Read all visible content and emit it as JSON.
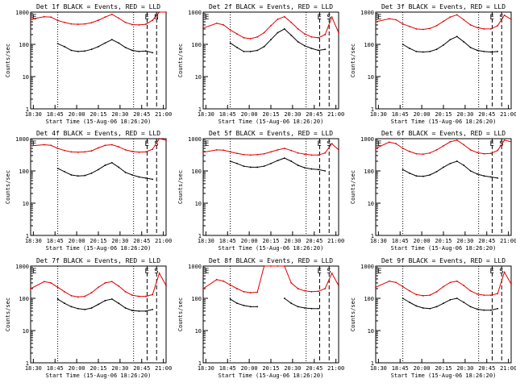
{
  "colors": {
    "events": "#000000",
    "lld": "#e00000",
    "background": "#ffffff",
    "axes": "#000000"
  },
  "chart_data": [
    {
      "type": "line",
      "title": "Det 1f BLACK = Events, RED = LLD",
      "xlabel": "Start Time (15-Aug-06 18:26:20)",
      "ylabel": "Counts/sec",
      "xticks": [
        "18:30",
        "18:45",
        "20:00",
        "20:15",
        "20:30",
        "20:45",
        "21:00"
      ],
      "ytick_labels": [
        "1",
        "10",
        "100",
        "1000"
      ],
      "yscale": "log",
      "ylim": [
        1,
        1000
      ],
      "markers": [
        "E",
        "E",
        "N"
      ],
      "x": [
        0.0,
        0.1,
        0.15,
        0.2,
        0.25,
        0.3,
        0.35,
        0.4,
        0.45,
        0.5,
        0.55,
        0.6,
        0.65,
        0.7,
        0.75,
        0.8,
        0.85,
        0.9,
        0.95,
        1.0
      ],
      "series": [
        {
          "name": "Events",
          "values": [
            null,
            null,
            null,
            105,
            85,
            65,
            60,
            62,
            70,
            85,
            110,
            140,
            110,
            80,
            65,
            60,
            62,
            55,
            null,
            null
          ]
        },
        {
          "name": "LLD",
          "values": [
            600,
            720,
            700,
            550,
            480,
            430,
            420,
            430,
            470,
            560,
            700,
            850,
            650,
            480,
            410,
            400,
            420,
            560,
            1000,
            1000
          ]
        }
      ]
    },
    {
      "type": "line",
      "title": "Det 2f BLACK = Events, RED = LLD",
      "xlabel": "Start Time (15-Aug-06 18:26:20)",
      "ylabel": "Counts/sec",
      "xticks": [
        "18:30",
        "18:45",
        "20:00",
        "20:15",
        "20:30",
        "20:45",
        "21:00"
      ],
      "ytick_labels": [
        "1",
        "10",
        "100",
        "1000"
      ],
      "yscale": "log",
      "ylim": [
        1,
        1000
      ],
      "markers": [
        "E",
        "E",
        "S"
      ],
      "x": [
        0.0,
        0.1,
        0.15,
        0.2,
        0.25,
        0.3,
        0.35,
        0.4,
        0.45,
        0.5,
        0.55,
        0.6,
        0.65,
        0.7,
        0.75,
        0.8,
        0.85,
        0.9,
        0.95,
        1.0
      ],
      "series": [
        {
          "name": "Events",
          "values": [
            null,
            null,
            null,
            110,
            80,
            60,
            60,
            65,
            85,
            140,
            230,
            300,
            190,
            120,
            90,
            75,
            65,
            70,
            null,
            null
          ]
        },
        {
          "name": "LLD",
          "values": [
            320,
            450,
            400,
            280,
            210,
            160,
            150,
            170,
            230,
            380,
            600,
            720,
            480,
            300,
            210,
            170,
            160,
            200,
            700,
            230
          ]
        }
      ]
    },
    {
      "type": "line",
      "title": "Det 3f BLACK = Events, RED = LLD",
      "xlabel": "Start Time (15-Aug-06 18:26:20)",
      "ylabel": "Counts/sec",
      "xticks": [
        "18:30",
        "18:45",
        "20:00",
        "20:15",
        "20:30",
        "20:45",
        "21:00"
      ],
      "ytick_labels": [
        "1",
        "10",
        "100",
        "1000"
      ],
      "yscale": "log",
      "ylim": [
        1,
        1000
      ],
      "markers": [
        "E",
        "E",
        "S"
      ],
      "x": [
        0.0,
        0.1,
        0.15,
        0.2,
        0.25,
        0.3,
        0.35,
        0.4,
        0.45,
        0.5,
        0.55,
        0.6,
        0.65,
        0.7,
        0.75,
        0.8,
        0.85,
        0.9,
        0.95,
        1.0
      ],
      "series": [
        {
          "name": "Events",
          "values": [
            null,
            null,
            null,
            100,
            75,
            60,
            58,
            60,
            70,
            95,
            140,
            175,
            120,
            80,
            65,
            60,
            58,
            60,
            null,
            null
          ]
        },
        {
          "name": "LLD",
          "values": [
            500,
            620,
            580,
            430,
            360,
            300,
            290,
            310,
            380,
            520,
            700,
            820,
            580,
            400,
            330,
            300,
            300,
            380,
            800,
            600
          ]
        }
      ]
    },
    {
      "type": "line",
      "title": "Det 4f BLACK = Events, RED = LLD",
      "xlabel": "Start Time (15-Aug-06 18:26:20)",
      "ylabel": "Counts/sec",
      "xticks": [
        "18:30",
        "18:45",
        "20:00",
        "20:15",
        "20:30",
        "20:45",
        "21:00"
      ],
      "ytick_labels": [
        "1",
        "10",
        "100",
        "1000"
      ],
      "yscale": "log",
      "ylim": [
        1,
        1000
      ],
      "markers": [
        "E",
        "E",
        "S"
      ],
      "x": [
        0.0,
        0.1,
        0.15,
        0.2,
        0.25,
        0.3,
        0.35,
        0.4,
        0.45,
        0.5,
        0.55,
        0.6,
        0.65,
        0.7,
        0.75,
        0.8,
        0.85,
        0.9,
        0.95,
        1.0
      ],
      "series": [
        {
          "name": "Events",
          "values": [
            null,
            null,
            null,
            120,
            95,
            75,
            70,
            72,
            85,
            110,
            150,
            180,
            130,
            90,
            75,
            65,
            60,
            55,
            null,
            null
          ]
        },
        {
          "name": "LLD",
          "values": [
            600,
            650,
            620,
            500,
            430,
            390,
            380,
            390,
            420,
            520,
            620,
            650,
            560,
            450,
            400,
            380,
            390,
            470,
            1000,
            900
          ]
        }
      ]
    },
    {
      "type": "line",
      "title": "Det 5f BLACK = Events, RED = LLD",
      "xlabel": "Start Time (15-Aug-06 18:26:20)",
      "ylabel": "Counts/sec",
      "xticks": [
        "18:30",
        "18:45",
        "20:00",
        "20:15",
        "20:30",
        "20:45",
        "21:00"
      ],
      "ytick_labels": [
        "1",
        "10",
        "100",
        "1000"
      ],
      "yscale": "log",
      "ylim": [
        1,
        1000
      ],
      "markers": [
        "E",
        "E",
        "S"
      ],
      "x": [
        0.0,
        0.1,
        0.15,
        0.2,
        0.25,
        0.3,
        0.35,
        0.4,
        0.45,
        0.5,
        0.55,
        0.6,
        0.65,
        0.7,
        0.75,
        0.8,
        0.85,
        0.9,
        0.95,
        1.0
      ],
      "series": [
        {
          "name": "Events",
          "values": [
            null,
            null,
            null,
            200,
            170,
            140,
            130,
            130,
            140,
            170,
            210,
            250,
            200,
            150,
            125,
            115,
            110,
            100,
            null,
            null
          ]
        },
        {
          "name": "LLD",
          "values": [
            380,
            450,
            440,
            390,
            350,
            320,
            310,
            320,
            340,
            390,
            450,
            500,
            430,
            360,
            330,
            310,
            310,
            360,
            700,
            450
          ]
        }
      ]
    },
    {
      "type": "line",
      "title": "Det 6f BLACK = Events, RED = LLD",
      "xlabel": "Start Time (15-Aug-06 18:26:20)",
      "ylabel": "Counts/sec",
      "xticks": [
        "18:30",
        "18:45",
        "20:00",
        "20:15",
        "20:30",
        "20:45",
        "21:00"
      ],
      "ytick_labels": [
        "1",
        "10",
        "100",
        "1000"
      ],
      "yscale": "log",
      "ylim": [
        1,
        1000
      ],
      "markers": [
        "E",
        "E",
        "S"
      ],
      "x": [
        0.0,
        0.1,
        0.15,
        0.2,
        0.25,
        0.3,
        0.35,
        0.4,
        0.45,
        0.5,
        0.55,
        0.6,
        0.65,
        0.7,
        0.75,
        0.8,
        0.85,
        0.9,
        0.95,
        1.0
      ],
      "series": [
        {
          "name": "Events",
          "values": [
            null,
            null,
            null,
            110,
            85,
            70,
            68,
            75,
            95,
            130,
            170,
            200,
            150,
            100,
            80,
            70,
            65,
            60,
            null,
            null
          ]
        },
        {
          "name": "LLD",
          "values": [
            500,
            780,
            700,
            500,
            400,
            340,
            330,
            360,
            450,
            600,
            800,
            900,
            650,
            450,
            370,
            340,
            350,
            430,
            900,
            800
          ]
        }
      ]
    },
    {
      "type": "line",
      "title": "Det 7f BLACK = Events, RED = LLD",
      "xlabel": "Start Time (15-Aug-06 18:26:20)",
      "ylabel": "Counts/sec",
      "xticks": [
        "18:30",
        "18:45",
        "20:00",
        "20:15",
        "20:30",
        "20:45",
        "21:00"
      ],
      "ytick_labels": [
        "1",
        "10",
        "100",
        "1000"
      ],
      "yscale": "log",
      "ylim": [
        1,
        1000
      ],
      "markers": [
        "E",
        "E",
        "S"
      ],
      "x": [
        0.0,
        0.1,
        0.15,
        0.2,
        0.25,
        0.3,
        0.35,
        0.4,
        0.45,
        0.5,
        0.55,
        0.6,
        0.65,
        0.7,
        0.75,
        0.8,
        0.85,
        0.9,
        0.95,
        1.0
      ],
      "series": [
        {
          "name": "Events",
          "values": [
            null,
            null,
            null,
            95,
            70,
            55,
            48,
            45,
            50,
            65,
            85,
            95,
            70,
            50,
            42,
            40,
            40,
            45,
            null,
            null
          ]
        },
        {
          "name": "LLD",
          "values": [
            200,
            330,
            300,
            220,
            160,
            120,
            110,
            115,
            150,
            220,
            300,
            330,
            240,
            160,
            125,
            115,
            115,
            130,
            600,
            250
          ]
        }
      ]
    },
    {
      "type": "line",
      "title": "Det 8f BLACK = Events, RED = LLD",
      "xlabel": "Start Time (15-Aug-06 18:26:20)",
      "ylabel": "Counts/sec",
      "xticks": [
        "18:30",
        "18:45",
        "20:00",
        "20:15",
        "20:30",
        "20:45",
        "21:00"
      ],
      "ytick_labels": [
        "1",
        "10",
        "100",
        "1000"
      ],
      "yscale": "log",
      "ylim": [
        1,
        1000
      ],
      "markers": [
        "E",
        "E",
        "S"
      ],
      "x": [
        0.0,
        0.1,
        0.15,
        0.2,
        0.25,
        0.3,
        0.35,
        0.4,
        0.45,
        0.5,
        0.55,
        0.6,
        0.65,
        0.7,
        0.75,
        0.8,
        0.85,
        0.9,
        0.95,
        1.0
      ],
      "series": [
        {
          "name": "Events",
          "values": [
            null,
            null,
            null,
            95,
            70,
            60,
            55,
            55,
            null,
            null,
            null,
            100,
            70,
            55,
            50,
            48,
            48,
            null,
            null,
            null
          ]
        },
        {
          "name": "LLD",
          "values": [
            200,
            380,
            340,
            260,
            200,
            160,
            150,
            155,
            1000,
            1000,
            1000,
            1000,
            300,
            200,
            170,
            160,
            165,
            200,
            600,
            250
          ]
        }
      ]
    },
    {
      "type": "line",
      "title": "Det 9f BLACK = Events, RED = LLD",
      "xlabel": "Start Time (15-Aug-06 18:26:20)",
      "ylabel": "Counts/sec",
      "xticks": [
        "18:30",
        "18:45",
        "20:00",
        "20:15",
        "20:30",
        "20:45",
        "21:00"
      ],
      "ytick_labels": [
        "1",
        "10",
        "100",
        "1000"
      ],
      "yscale": "log",
      "ylim": [
        1,
        1000
      ],
      "markers": [
        "E",
        "E",
        "S"
      ],
      "x": [
        0.0,
        0.1,
        0.15,
        0.2,
        0.25,
        0.3,
        0.35,
        0.4,
        0.45,
        0.5,
        0.55,
        0.6,
        0.65,
        0.7,
        0.75,
        0.8,
        0.85,
        0.9,
        0.95,
        1.0
      ],
      "series": [
        {
          "name": "Events",
          "values": [
            null,
            null,
            null,
            100,
            75,
            58,
            50,
            48,
            55,
            70,
            90,
            100,
            75,
            55,
            46,
            43,
            43,
            48,
            null,
            null
          ]
        },
        {
          "name": "LLD",
          "values": [
            220,
            340,
            310,
            230,
            170,
            130,
            120,
            125,
            160,
            230,
            310,
            340,
            250,
            170,
            135,
            125,
            125,
            140,
            650,
            280
          ]
        }
      ]
    }
  ]
}
